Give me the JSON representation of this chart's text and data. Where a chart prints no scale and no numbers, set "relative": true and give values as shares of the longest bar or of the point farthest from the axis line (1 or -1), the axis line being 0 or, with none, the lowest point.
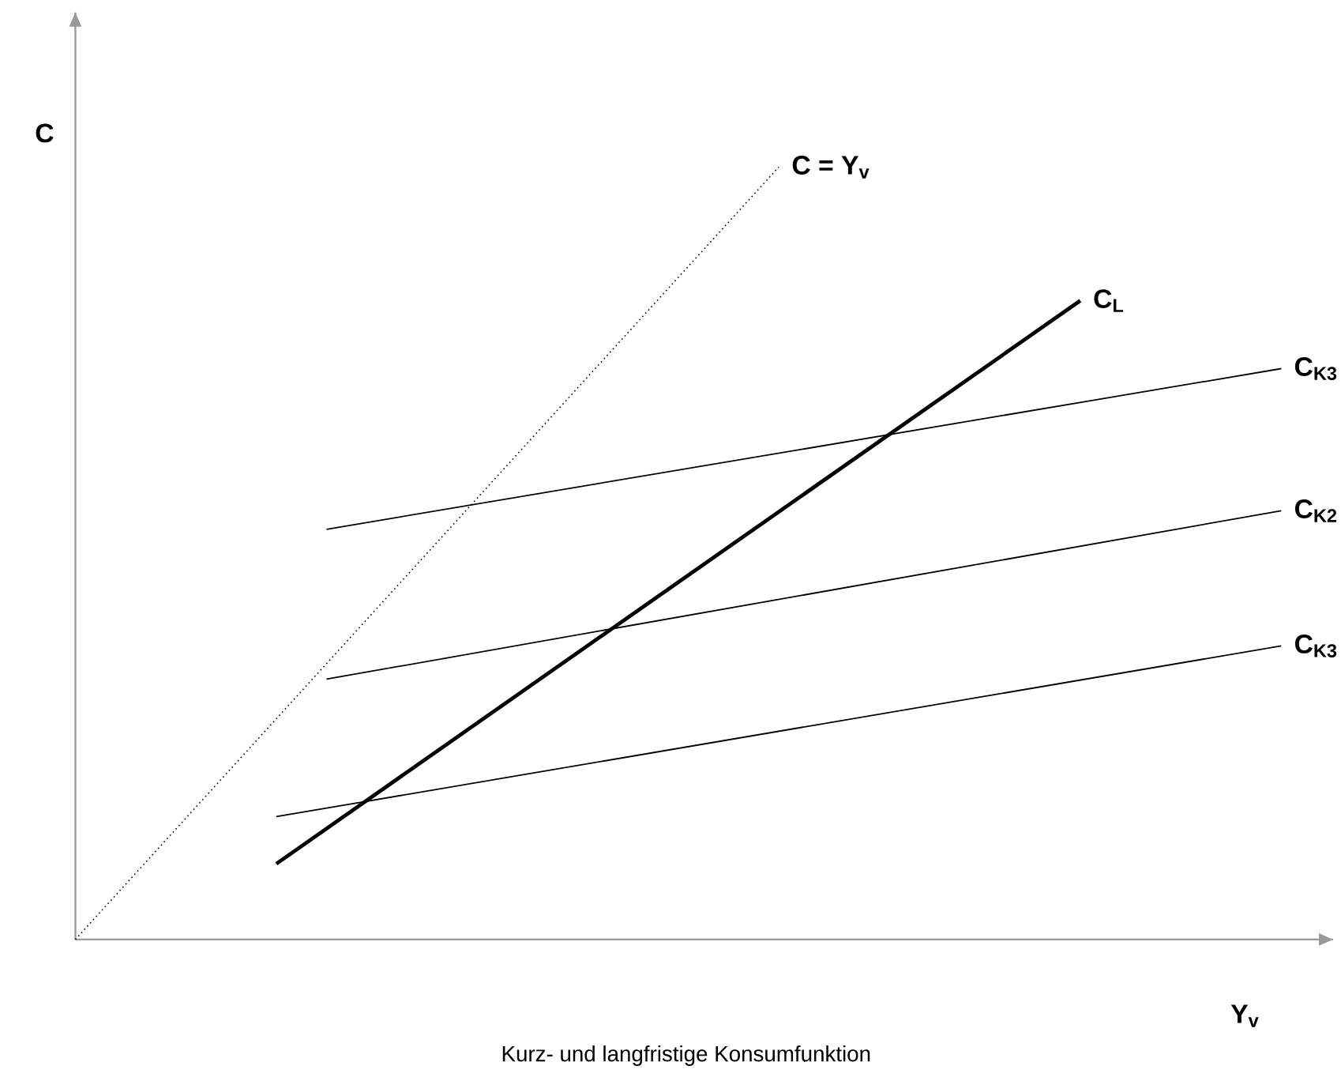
{
  "chart_data": {
    "type": "line",
    "relative": true,
    "xlabel": "Y$_{v}$",
    "ylabel": "C",
    "annotations": [
      "Kurz- und langfristige Konsumfunktion"
    ],
    "categories": [
      null,
      null,
      null,
      null,
      null,
      null,
      null,
      null,
      null,
      null,
      null,
      null,
      null,
      null,
      null,
      null,
      null,
      null,
      null,
      null,
      null,
      null,
      null,
      null,
      null
    ],
    "series": [
      {
        "name": "C = Y$_{v}$",
        "color": "#000000",
        "line_style": "dotted",
        "values": [
          0,
          null,
          null,
          null,
          null,
          null,
          null,
          null,
          null,
          null,
          null,
          null,
          null,
          null,
          1,
          null,
          null,
          null,
          null,
          null,
          null,
          null,
          null,
          null,
          null
        ]
      },
      {
        "name": "C$_{L}$",
        "color": "#000000",
        "values": [
          null,
          null,
          null,
          null,
          0.098,
          null,
          null,
          null,
          null,
          null,
          null,
          null,
          null,
          null,
          null,
          null,
          null,
          null,
          null,
          null,
          0.827,
          null,
          null,
          null,
          null
        ]
      },
      {
        "name": "C$_{K3}$",
        "color": "#000000",
        "values": [
          null,
          null,
          null,
          null,
          null,
          0.531,
          null,
          null,
          null,
          null,
          null,
          null,
          null,
          null,
          null,
          null,
          null,
          null,
          null,
          null,
          null,
          null,
          null,
          null,
          0.739
        ]
      },
      {
        "name": "C$_{K2}$",
        "color": "#000000",
        "values": [
          null,
          null,
          null,
          null,
          null,
          0.337,
          null,
          null,
          null,
          null,
          null,
          null,
          null,
          null,
          null,
          null,
          null,
          null,
          null,
          null,
          null,
          null,
          null,
          null,
          0.555
        ]
      },
      {
        "name": "C$_{K3}$",
        "color": "#000000",
        "values": [
          null,
          null,
          null,
          null,
          0.159,
          null,
          null,
          null,
          null,
          null,
          null,
          null,
          null,
          null,
          null,
          null,
          null,
          null,
          null,
          null,
          null,
          null,
          null,
          null,
          0.38
        ]
      }
    ]
  }
}
